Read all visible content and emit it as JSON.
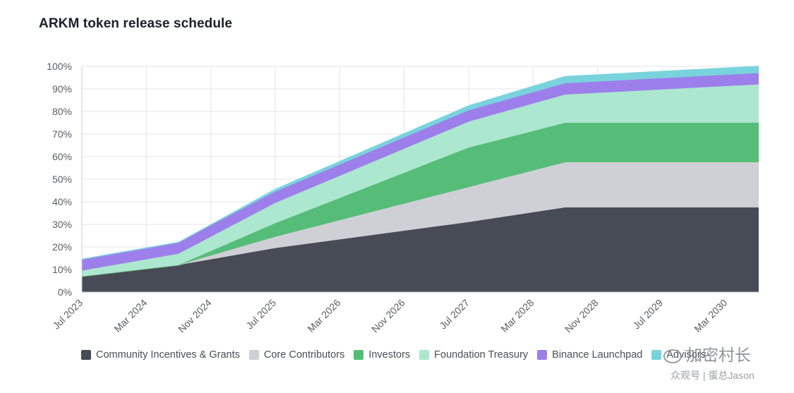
{
  "title": "ARKM token release schedule",
  "colors": {
    "community": "#474b55",
    "core": "#cfd0d6",
    "investors": "#56bd78",
    "foundation": "#ace7cf",
    "binance": "#9d7fec",
    "advisors": "#78d3dc"
  },
  "legend": [
    {
      "label": "Community Incentives & Grants",
      "color": "#474b55"
    },
    {
      "label": "Core Contributors",
      "color": "#cfd0d6"
    },
    {
      "label": "Investors",
      "color": "#56bd78"
    },
    {
      "label": "Foundation Treasury",
      "color": "#ace7cf"
    },
    {
      "label": "Binance Launchpad",
      "color": "#9d7fec"
    },
    {
      "label": "Advisors",
      "color": "#78d3dc"
    }
  ],
  "watermark": {
    "main": "加密村长",
    "sub": "众观号 | 蛋总Jason"
  },
  "chart_data": {
    "type": "area",
    "stacked": true,
    "x": [
      "2023-07",
      "2024-07",
      "2025-07",
      "2027-07",
      "2028-07",
      "2030-07"
    ],
    "x_ticks": [
      "Jul 2023",
      "Mar 2024",
      "Nov 2024",
      "Jul 2025",
      "Mar 2026",
      "Nov 2026",
      "Jul 2027",
      "Mar 2028",
      "Nov 2028",
      "Jul 2029",
      "Mar 2030"
    ],
    "y_ticks": [
      "0%",
      "10%",
      "20%",
      "30%",
      "40%",
      "50%",
      "60%",
      "70%",
      "80%",
      "90%",
      "100%"
    ],
    "ylim": [
      0,
      100
    ],
    "grid": true,
    "legend_position": "bottom",
    "series": [
      {
        "name": "Community Incentives & Grants",
        "color": "#474b55",
        "values": [
          7,
          12,
          19.5,
          31,
          37.5,
          37.5
        ]
      },
      {
        "name": "Core Contributors",
        "color": "#cfd0d6",
        "values": [
          0,
          0,
          5,
          15.5,
          20,
          20
        ]
      },
      {
        "name": "Investors",
        "color": "#56bd78",
        "values": [
          0,
          0,
          6,
          17.5,
          17.5,
          17.5
        ]
      },
      {
        "name": "Foundation Treasury",
        "color": "#ace7cf",
        "values": [
          2.5,
          5,
          9,
          11.5,
          12.5,
          17
        ]
      },
      {
        "name": "Binance Launchpad",
        "color": "#9d7fec",
        "values": [
          5,
          5,
          5,
          5,
          5,
          5
        ]
      },
      {
        "name": "Advisors",
        "color": "#78d3dc",
        "values": [
          0,
          0,
          1,
          2,
          3,
          3
        ]
      }
    ]
  }
}
